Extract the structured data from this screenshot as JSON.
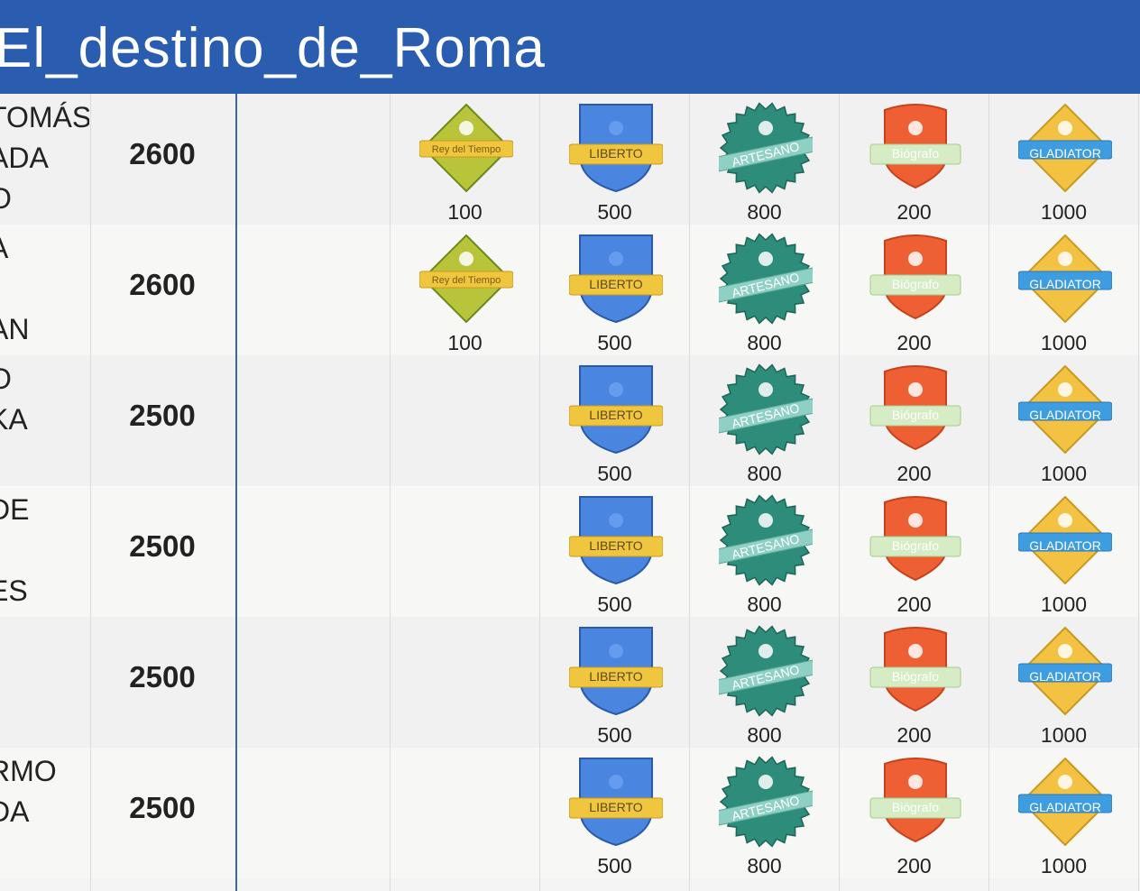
{
  "header": {
    "title": "El_destino_de_Roma"
  },
  "badges": {
    "rey": {
      "label": "Rey del Tiempo",
      "icon": "camera-icon",
      "color": "#b9c43a"
    },
    "liberto": {
      "label": "LIBERTO",
      "icon": "lightning-icon",
      "color": "#4a86e0"
    },
    "artesano": {
      "label": "ARTESANO",
      "icon": "sheep-icon",
      "color": "#2d8c7a"
    },
    "biografo": {
      "label": "Biógrafo",
      "icon": "mask-icon",
      "color": "#ee6033"
    },
    "gladiator": {
      "label": "GLADIATOR",
      "icon": "arm-icon",
      "color": "#f3c242"
    }
  },
  "rows": [
    {
      "name_lines": [
        "TOMÁS",
        "ADA",
        "O"
      ],
      "points": "2600",
      "values": {
        "rey": "100",
        "liberto": "500",
        "artesano": "800",
        "biografo": "200",
        "gladiator": "1000"
      }
    },
    {
      "name_lines": [
        "A",
        "",
        "AN"
      ],
      "points": "2600",
      "values": {
        "rey": "100",
        "liberto": "500",
        "artesano": "800",
        "biografo": "200",
        "gladiator": "1000"
      }
    },
    {
      "name_lines": [
        "O",
        "KA"
      ],
      "points": "2500",
      "values": {
        "liberto": "500",
        "artesano": "800",
        "biografo": "200",
        "gladiator": "1000"
      }
    },
    {
      "name_lines": [
        "DE",
        "",
        "ES"
      ],
      "points": "2500",
      "values": {
        "liberto": "500",
        "artesano": "800",
        "biografo": "200",
        "gladiator": "1000"
      }
    },
    {
      "name_lines": [
        "-"
      ],
      "points": "2500",
      "values": {
        "liberto": "500",
        "artesano": "800",
        "biografo": "200",
        "gladiator": "1000"
      }
    },
    {
      "name_lines": [
        "RMO",
        "DA"
      ],
      "points": "2500",
      "values": {
        "liberto": "500",
        "artesano": "800",
        "biografo": "200",
        "gladiator": "1000"
      }
    }
  ]
}
